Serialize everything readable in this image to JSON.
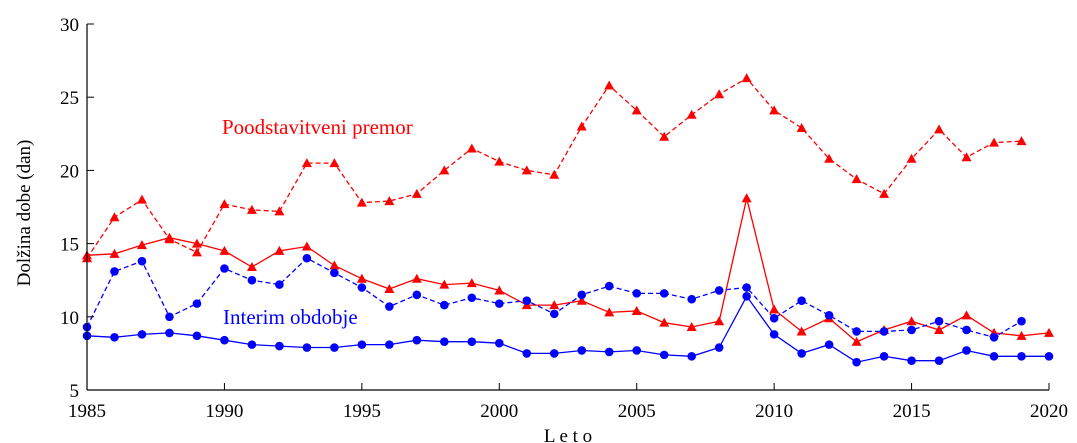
{
  "chart_data": {
    "type": "line",
    "xlabel": "L e t o",
    "ylabel": "Dolžina dobe (dan)",
    "xlim": [
      1985,
      2020
    ],
    "ylim": [
      5,
      30
    ],
    "x_ticks": [
      1985,
      1990,
      1995,
      2000,
      2005,
      2010,
      2015,
      2020
    ],
    "y_ticks": [
      5,
      10,
      15,
      20,
      25,
      30
    ],
    "grid": false,
    "legend": "none",
    "annotations": [
      {
        "text": "Poodstavitveni premor",
        "color": "#ff0000"
      },
      {
        "text": "Interim obdobje",
        "color": "#0000ff"
      }
    ],
    "series": [
      {
        "color": "#ff0000",
        "marker": "triangle",
        "dashed": true,
        "x": [
          1985,
          1986,
          1987,
          1988,
          1989,
          1990,
          1991,
          1992,
          1993,
          1994,
          1995,
          1996,
          1997,
          1998,
          1999,
          2000,
          2001,
          2002,
          2003,
          2004,
          2005,
          2006,
          2007,
          2008,
          2009,
          2010,
          2011,
          2012,
          2013,
          2014,
          2015,
          2016,
          2017,
          2018,
          2019
        ],
        "values": [
          14.0,
          16.8,
          18.0,
          15.3,
          14.4,
          17.7,
          17.3,
          17.2,
          20.5,
          20.5,
          17.8,
          17.9,
          18.4,
          20.0,
          21.5,
          20.6,
          20.0,
          19.7,
          23.0,
          25.8,
          24.1,
          22.3,
          23.8,
          25.2,
          26.3,
          24.1,
          22.9,
          20.8,
          19.4,
          18.4,
          20.8,
          22.8,
          20.9,
          21.9,
          22.0
        ]
      },
      {
        "color": "#ff0000",
        "marker": "triangle",
        "dashed": false,
        "x": [
          1985,
          1986,
          1987,
          1988,
          1989,
          1990,
          1991,
          1992,
          1993,
          1994,
          1995,
          1996,
          1997,
          1998,
          1999,
          2000,
          2001,
          2002,
          2003,
          2004,
          2005,
          2006,
          2007,
          2008,
          2009,
          2010,
          2011,
          2012,
          2013,
          2014,
          2015,
          2016,
          2017,
          2018,
          2019,
          2020
        ],
        "values": [
          14.2,
          14.3,
          14.9,
          15.4,
          15.0,
          14.5,
          13.4,
          14.5,
          14.8,
          13.5,
          12.6,
          11.9,
          12.6,
          12.2,
          12.3,
          11.8,
          10.8,
          10.8,
          11.1,
          10.3,
          10.4,
          9.6,
          9.3,
          9.7,
          18.1,
          10.5,
          9.0,
          9.9,
          8.3,
          9.1,
          9.7,
          9.1,
          10.1,
          8.9,
          8.7,
          8.9
        ]
      },
      {
        "color": "#0000ff",
        "marker": "circle",
        "dashed": true,
        "x": [
          1985,
          1986,
          1987,
          1988,
          1989,
          1990,
          1991,
          1992,
          1993,
          1994,
          1995,
          1996,
          1997,
          1998,
          1999,
          2000,
          2001,
          2002,
          2003,
          2004,
          2005,
          2006,
          2007,
          2008,
          2009,
          2010,
          2011,
          2012,
          2013,
          2014,
          2015,
          2016,
          2017,
          2018,
          2019
        ],
        "values": [
          9.3,
          13.1,
          13.8,
          10.0,
          10.9,
          13.3,
          12.5,
          12.2,
          14.0,
          13.0,
          12.0,
          10.7,
          11.5,
          10.8,
          11.3,
          10.9,
          11.1,
          10.2,
          11.5,
          12.1,
          11.6,
          11.6,
          11.2,
          11.8,
          12.0,
          9.9,
          11.1,
          10.1,
          9.0,
          9.0,
          9.1,
          9.7,
          9.1,
          8.6,
          9.7
        ]
      },
      {
        "color": "#0000ff",
        "marker": "circle",
        "dashed": false,
        "x": [
          1985,
          1986,
          1987,
          1988,
          1989,
          1990,
          1991,
          1992,
          1993,
          1994,
          1995,
          1996,
          1997,
          1998,
          1999,
          2000,
          2001,
          2002,
          2003,
          2004,
          2005,
          2006,
          2007,
          2008,
          2009,
          2010,
          2011,
          2012,
          2013,
          2014,
          2015,
          2016,
          2017,
          2018,
          2019,
          2020
        ],
        "values": [
          8.7,
          8.6,
          8.8,
          8.9,
          8.7,
          8.4,
          8.1,
          8.0,
          7.9,
          7.9,
          8.1,
          8.1,
          8.4,
          8.3,
          8.3,
          8.2,
          7.5,
          7.5,
          7.7,
          7.6,
          7.7,
          7.4,
          7.3,
          7.9,
          11.4,
          8.8,
          7.5,
          8.1,
          6.9,
          7.3,
          7.0,
          7.0,
          7.7,
          7.3,
          7.3,
          7.3
        ]
      }
    ]
  }
}
